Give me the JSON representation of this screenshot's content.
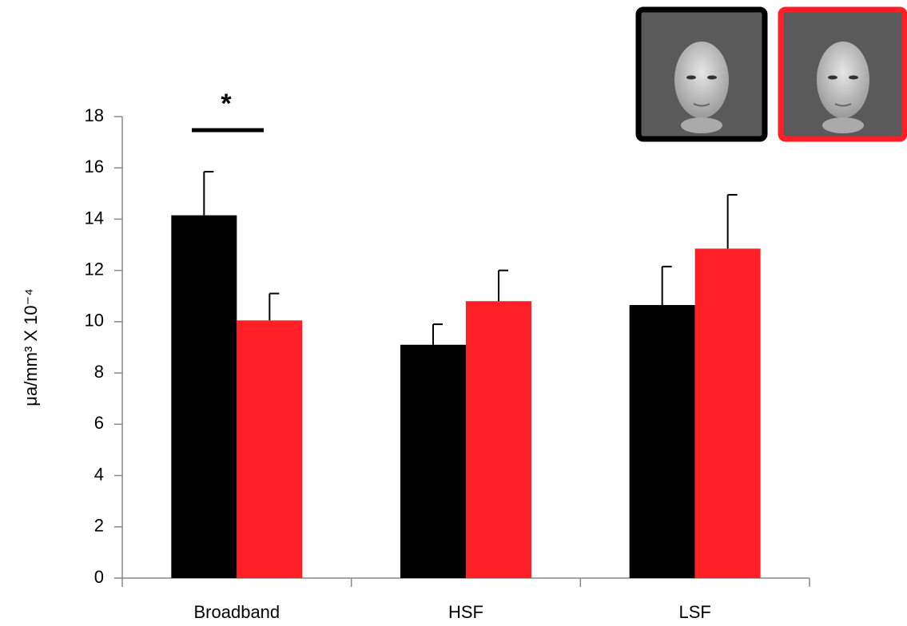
{
  "chart_data": {
    "type": "bar",
    "y_label": "μa/mm³ X 10⁻⁴",
    "annotation": "*",
    "categories": [
      "Broadband",
      "HSF",
      "LSF"
    ],
    "series": [
      {
        "color": "#000000",
        "values": [
          14.15,
          9.1,
          10.65
        ],
        "errors": [
          1.7,
          0.8,
          1.5
        ]
      },
      {
        "color": "#ff1f26",
        "values": [
          10.05,
          10.8,
          12.85
        ],
        "errors": [
          1.05,
          1.2,
          2.1
        ]
      }
    ],
    "ylim": [
      0,
      18
    ],
    "yticks": [
      0,
      2,
      4,
      6,
      8,
      10,
      12,
      14,
      16,
      18
    ]
  }
}
